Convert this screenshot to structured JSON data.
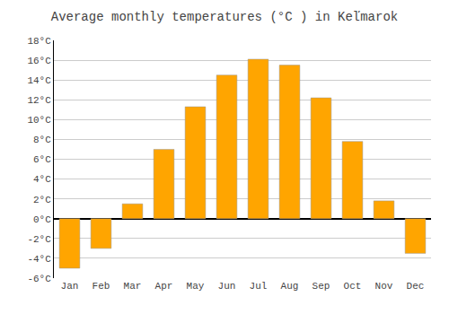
{
  "chart_data": {
    "type": "bar",
    "title": "Average monthly temperatures (°C ) in Keľmarok",
    "categories": [
      "Jan",
      "Feb",
      "Mar",
      "Apr",
      "May",
      "Jun",
      "Jul",
      "Aug",
      "Sep",
      "Oct",
      "Nov",
      "Dec"
    ],
    "values": [
      -5.0,
      -3.0,
      1.5,
      7.0,
      11.3,
      14.5,
      16.1,
      15.5,
      12.2,
      7.8,
      1.8,
      -3.5
    ],
    "color": "#FFA500",
    "ylim": [
      -6,
      18
    ],
    "yticks": [
      {
        "value": -6,
        "label": "-6°C"
      },
      {
        "value": -4,
        "label": "-4°C"
      },
      {
        "value": -2,
        "label": "-2°C"
      },
      {
        "value": 0,
        "label": "0°C"
      },
      {
        "value": 2,
        "label": "2°C"
      },
      {
        "value": 4,
        "label": "4°C"
      },
      {
        "value": 6,
        "label": "6°C"
      },
      {
        "value": 8,
        "label": "8°C"
      },
      {
        "value": 10,
        "label": "10°C"
      },
      {
        "value": 12,
        "label": "12°C"
      },
      {
        "value": 14,
        "label": "14°C"
      },
      {
        "value": 16,
        "label": "16°C"
      },
      {
        "value": 18,
        "label": "18°C"
      }
    ],
    "grid": true
  }
}
